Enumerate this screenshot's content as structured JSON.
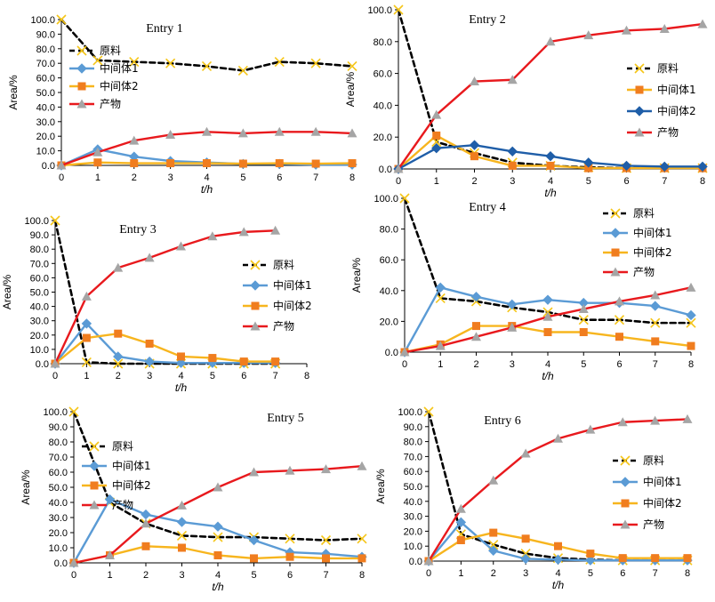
{
  "colors": {
    "raw": "#000000",
    "raw_marker": "#f5c518",
    "int1": "#5b9bd5",
    "int2": "#f7b51e",
    "int2_marker": "#f07d1f",
    "product": "#e8191d",
    "product_marker": "#a5a5a5",
    "entry2_int2": "#1f5ea8"
  },
  "chart_data": [
    {
      "type": "line",
      "title": "Entry 1",
      "xlabel": "t/h",
      "ylabel": "Area/%",
      "x": [
        0,
        1,
        2,
        3,
        4,
        5,
        6,
        7,
        8
      ],
      "xlim": [
        0,
        8
      ],
      "ylim": [
        0,
        100
      ],
      "ytick_labels": [
        "0.0",
        "10.0",
        "20.0",
        "30.0",
        "40.0",
        "50.0",
        "60.0",
        "70.0",
        "80.0",
        "90.0",
        "100.0"
      ],
      "xtick_labels": [
        "0",
        "1",
        "2",
        "3",
        "4",
        "5",
        "6",
        "7",
        "8"
      ],
      "legend_position": "left",
      "series": [
        {
          "name": "原料",
          "values": [
            100,
            72,
            71,
            70,
            68,
            65,
            71,
            70,
            68
          ]
        },
        {
          "name": "中间体1",
          "values": [
            0,
            11,
            6,
            3,
            2,
            1,
            1,
            0.5,
            0.5
          ]
        },
        {
          "name": "中间体2",
          "values": [
            0,
            2,
            1.5,
            1.5,
            1.5,
            1.2,
            1.5,
            1.2,
            1.5
          ]
        },
        {
          "name": "产物",
          "values": [
            0,
            9,
            17,
            21,
            23,
            22,
            23,
            23,
            22
          ]
        }
      ]
    },
    {
      "type": "line",
      "title": "Entry 2",
      "xlabel": "t/h",
      "ylabel": "Area/%",
      "x": [
        0,
        1,
        2,
        3,
        4,
        5,
        6,
        7,
        8
      ],
      "xlim": [
        0,
        8
      ],
      "ylim": [
        0,
        100
      ],
      "ytick_labels": [
        "0.0",
        "20.0",
        "40.0",
        "60.0",
        "80.0",
        "100.0"
      ],
      "xtick_labels": [
        "0",
        "1",
        "2",
        "3",
        "4",
        "5",
        "6",
        "7",
        "8"
      ],
      "legend_position": "right",
      "series": [
        {
          "name": "原料",
          "values": [
            100,
            17,
            10,
            4,
            2,
            1,
            0.5,
            0.5,
            0.5
          ]
        },
        {
          "name": "中间体1",
          "values": [
            0,
            21,
            8,
            2,
            2,
            0.5,
            0.5,
            0.5,
            0.5
          ]
        },
        {
          "name": "中间体2",
          "values": [
            0,
            13,
            15,
            11,
            8,
            4,
            2,
            1.5,
            1.5
          ]
        },
        {
          "name": "产物",
          "values": [
            0,
            34,
            55,
            56,
            80,
            84,
            87,
            88,
            91
          ]
        }
      ]
    },
    {
      "type": "line",
      "title": "Entry 3",
      "xlabel": "t/h",
      "ylabel": "Area/%",
      "x": [
        0,
        1,
        2,
        3,
        4,
        5,
        6,
        7
      ],
      "xlim": [
        0,
        8
      ],
      "ylim": [
        0,
        100
      ],
      "ytick_labels": [
        "0.0",
        "10.0",
        "20.0",
        "30.0",
        "40.0",
        "50.0",
        "60.0",
        "70.0",
        "80.0",
        "90.0",
        "100.0"
      ],
      "xtick_labels": [
        "0",
        "1",
        "2",
        "3",
        "4",
        "5",
        "6",
        "7",
        "8"
      ],
      "legend_position": "right",
      "series": [
        {
          "name": "原料",
          "values": [
            100,
            1,
            0,
            0,
            0,
            0,
            0,
            0
          ]
        },
        {
          "name": "中间体1",
          "values": [
            0,
            28,
            5,
            1.5,
            0.5,
            0.5,
            0.5,
            0.5
          ]
        },
        {
          "name": "中间体2",
          "values": [
            0,
            18,
            21,
            14,
            5,
            4,
            1.5,
            1.5
          ]
        },
        {
          "name": "产物",
          "values": [
            0,
            47,
            67,
            74,
            82,
            89,
            92,
            93
          ]
        }
      ]
    },
    {
      "type": "line",
      "title": "Entry 4",
      "xlabel": "t/h",
      "ylabel": "Area/%",
      "x": [
        0,
        1,
        2,
        3,
        4,
        5,
        6,
        7,
        8
      ],
      "xlim": [
        0,
        8
      ],
      "ylim": [
        0,
        100
      ],
      "ytick_labels": [
        "0.0",
        "20.0",
        "40.0",
        "60.0",
        "80.0",
        "100.0"
      ],
      "xtick_labels": [
        "0",
        "1",
        "2",
        "3",
        "4",
        "5",
        "6",
        "7",
        "8"
      ],
      "legend_position": "right",
      "series": [
        {
          "name": "原料",
          "values": [
            100,
            35,
            33,
            29,
            26,
            21,
            21,
            19,
            19
          ]
        },
        {
          "name": "中间体1",
          "values": [
            0,
            42,
            36,
            31,
            34,
            32,
            32,
            30,
            24
          ]
        },
        {
          "name": "中间体2",
          "values": [
            0,
            5,
            17,
            17,
            13,
            13,
            10,
            7,
            4
          ]
        },
        {
          "name": "产物",
          "values": [
            0,
            4,
            10,
            16,
            23,
            28,
            33,
            37,
            42
          ]
        }
      ]
    },
    {
      "type": "line",
      "title": "Entry 5",
      "xlabel": "t/h",
      "ylabel": "Area/%",
      "x": [
        0,
        1,
        2,
        3,
        4,
        5,
        6,
        7,
        8
      ],
      "xlim": [
        0,
        8
      ],
      "ylim": [
        0,
        100
      ],
      "ytick_labels": [
        "0.0",
        "10.0",
        "20.0",
        "30.0",
        "40.0",
        "50.0",
        "60.0",
        "70.0",
        "80.0",
        "90.0",
        "100.0"
      ],
      "xtick_labels": [
        "0",
        "1",
        "2",
        "3",
        "4",
        "5",
        "6",
        "7",
        "8"
      ],
      "legend_position": "left",
      "series": [
        {
          "name": "原料",
          "values": [
            100,
            40,
            26,
            18,
            17,
            17,
            16,
            15,
            16
          ]
        },
        {
          "name": "中间体1",
          "values": [
            0,
            42,
            32,
            27,
            24,
            15,
            7,
            6,
            4
          ]
        },
        {
          "name": "中间体2",
          "values": [
            0,
            5,
            11,
            10,
            5,
            3,
            4,
            3,
            3
          ]
        },
        {
          "name": "产物",
          "values": [
            0,
            5,
            26,
            38,
            50,
            60,
            61,
            62,
            64
          ]
        }
      ]
    },
    {
      "type": "line",
      "title": "Entry 6",
      "xlabel": "t/h",
      "ylabel": "Area/%",
      "x": [
        0,
        1,
        2,
        3,
        4,
        5,
        6,
        7,
        8
      ],
      "xlim": [
        0,
        8
      ],
      "ylim": [
        0,
        100
      ],
      "ytick_labels": [
        "0.0",
        "10.0",
        "20.0",
        "30.0",
        "40.0",
        "50.0",
        "60.0",
        "70.0",
        "80.0",
        "90.0",
        "100.0"
      ],
      "xtick_labels": [
        "0",
        "1",
        "2",
        "3",
        "4",
        "5",
        "6",
        "7",
        "8"
      ],
      "legend_position": "right",
      "series": [
        {
          "name": "原料",
          "values": [
            100,
            18,
            11,
            5,
            2,
            1,
            0.5,
            0.5,
            0.5
          ]
        },
        {
          "name": "中间体1",
          "values": [
            0,
            26,
            7,
            1.5,
            1,
            0.5,
            0.5,
            0.5,
            0.5
          ]
        },
        {
          "name": "中间体2",
          "values": [
            0,
            14,
            19,
            15,
            10,
            5,
            2,
            2,
            2
          ]
        },
        {
          "name": "产物",
          "values": [
            0,
            35,
            54,
            72,
            82,
            88,
            93,
            94,
            95
          ]
        }
      ]
    }
  ]
}
